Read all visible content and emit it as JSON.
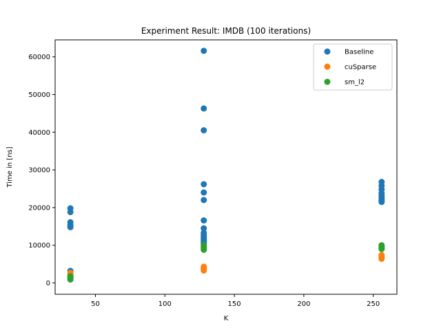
{
  "chart_data": {
    "type": "scatter",
    "title": "Experiment Result: IMDB (100 iterations)",
    "xlabel": "K",
    "ylabel": "Time in [ns]",
    "xlim": [
      21,
      267
    ],
    "ylim": [
      -3000,
      64500
    ],
    "xticks": [
      50,
      100,
      150,
      200,
      250
    ],
    "yticks": [
      0,
      10000,
      20000,
      30000,
      40000,
      50000,
      60000
    ],
    "grid": false,
    "legend_position": "top-right",
    "series": [
      {
        "name": "Baseline",
        "color": "#1f77b4",
        "points": [
          [
            32,
            19800
          ],
          [
            32,
            18800
          ],
          [
            32,
            16100
          ],
          [
            32,
            15300
          ],
          [
            32,
            15000
          ],
          [
            32,
            14800
          ],
          [
            32,
            3200
          ],
          [
            128,
            61600
          ],
          [
            128,
            46300
          ],
          [
            128,
            40500
          ],
          [
            128,
            26200
          ],
          [
            128,
            24000
          ],
          [
            128,
            22000
          ],
          [
            128,
            16600
          ],
          [
            128,
            14500
          ],
          [
            128,
            13300
          ],
          [
            128,
            12800
          ],
          [
            128,
            12400
          ],
          [
            128,
            12100
          ],
          [
            128,
            11800
          ],
          [
            128,
            11500
          ],
          [
            128,
            11200
          ],
          [
            128,
            10900
          ],
          [
            128,
            10600
          ],
          [
            128,
            10300
          ],
          [
            256,
            26800
          ],
          [
            256,
            25800
          ],
          [
            256,
            24800
          ],
          [
            256,
            23800
          ],
          [
            256,
            23200
          ],
          [
            256,
            22700
          ],
          [
            256,
            22300
          ],
          [
            256,
            21800
          ],
          [
            256,
            21500
          ]
        ]
      },
      {
        "name": "cuSparse",
        "color": "#ff7f0e",
        "points": [
          [
            32,
            2700
          ],
          [
            32,
            2200
          ],
          [
            32,
            1800
          ],
          [
            32,
            1500
          ],
          [
            128,
            4300
          ],
          [
            128,
            3900
          ],
          [
            128,
            3600
          ],
          [
            128,
            3300
          ],
          [
            256,
            7400
          ],
          [
            256,
            7000
          ],
          [
            256,
            6700
          ],
          [
            256,
            6400
          ]
        ]
      },
      {
        "name": "sm_l2",
        "color": "#2ca02c",
        "points": [
          [
            32,
            1800
          ],
          [
            32,
            1400
          ],
          [
            32,
            1100
          ],
          [
            32,
            900
          ],
          [
            128,
            10000
          ],
          [
            128,
            9600
          ],
          [
            128,
            9300
          ],
          [
            128,
            9000
          ],
          [
            128,
            8800
          ],
          [
            256,
            10000
          ],
          [
            256,
            9700
          ],
          [
            256,
            9400
          ],
          [
            256,
            9200
          ],
          [
            256,
            9000
          ]
        ]
      }
    ]
  }
}
